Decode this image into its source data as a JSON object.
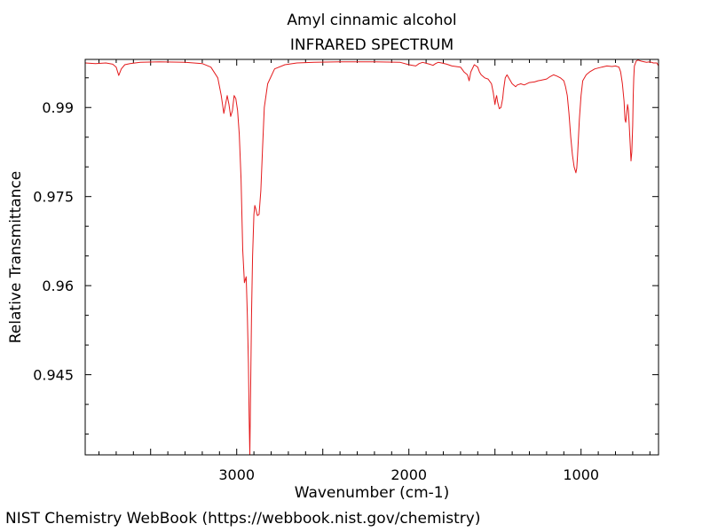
{
  "chart_data": {
    "type": "line",
    "title": "Amyl cinnamic alcohol",
    "subtitle": "INFRARED SPECTRUM",
    "xlabel": "Wavenumber (cm-1)",
    "ylabel": "Relative Transmittance",
    "xlim": [
      3880,
      550
    ],
    "ylim": [
      0.9315,
      0.9981
    ],
    "x_ticks": [
      3000,
      2000,
      1000
    ],
    "x_tick_labels": [
      "3000",
      "2000",
      "1000"
    ],
    "y_ticks": [
      0.99,
      0.975,
      0.96,
      0.945
    ],
    "y_tick_labels": [
      "0.99",
      "0.975",
      "0.96",
      "0.945"
    ],
    "grid": false,
    "series": [
      {
        "color": "#e41a1c",
        "x": [
          3880,
          3820,
          3760,
          3720,
          3700,
          3685,
          3670,
          3650,
          3620,
          3560,
          3450,
          3300,
          3200,
          3150,
          3110,
          3090,
          3075,
          3065,
          3055,
          3045,
          3035,
          3025,
          3015,
          3005,
          2995,
          2985,
          2975,
          2965,
          2955,
          2945,
          2938,
          2932,
          2928,
          2924,
          2920,
          2914,
          2908,
          2900,
          2895,
          2890,
          2880,
          2870,
          2860,
          2850,
          2840,
          2820,
          2780,
          2720,
          2650,
          2550,
          2400,
          2200,
          2050,
          2000,
          1960,
          1940,
          1920,
          1880,
          1860,
          1845,
          1830,
          1810,
          1780,
          1750,
          1700,
          1680,
          1660,
          1650,
          1640,
          1620,
          1600,
          1590,
          1580,
          1560,
          1540,
          1520,
          1510,
          1500,
          1495,
          1490,
          1485,
          1475,
          1465,
          1455,
          1450,
          1440,
          1430,
          1420,
          1400,
          1380,
          1370,
          1350,
          1330,
          1300,
          1270,
          1250,
          1230,
          1200,
          1180,
          1160,
          1140,
          1120,
          1100,
          1090,
          1080,
          1070,
          1060,
          1050,
          1040,
          1030,
          1025,
          1020,
          1010,
          1000,
          990,
          970,
          950,
          920,
          880,
          850,
          820,
          800,
          780,
          770,
          760,
          750,
          745,
          740,
          735,
          730,
          725,
          720,
          715,
          710,
          705,
          700,
          697,
          694,
          690,
          680,
          670,
          650,
          620,
          600,
          580,
          560,
          550
        ],
        "y": [
          0.9975,
          0.9974,
          0.9975,
          0.9973,
          0.9968,
          0.9954,
          0.9965,
          0.9972,
          0.9974,
          0.9976,
          0.9977,
          0.9976,
          0.9974,
          0.9968,
          0.995,
          0.992,
          0.989,
          0.9905,
          0.992,
          0.9905,
          0.9885,
          0.9895,
          0.992,
          0.9915,
          0.9895,
          0.9855,
          0.978,
          0.966,
          0.9605,
          0.9615,
          0.955,
          0.947,
          0.938,
          0.9315,
          0.94,
          0.955,
          0.965,
          0.972,
          0.9735,
          0.973,
          0.9718,
          0.972,
          0.976,
          0.983,
          0.99,
          0.994,
          0.9965,
          0.9972,
          0.9975,
          0.9976,
          0.9977,
          0.9977,
          0.9976,
          0.9972,
          0.997,
          0.9974,
          0.9976,
          0.9973,
          0.9971,
          0.9974,
          0.9976,
          0.9975,
          0.9973,
          0.997,
          0.9968,
          0.996,
          0.9955,
          0.9945,
          0.996,
          0.9972,
          0.9968,
          0.996,
          0.9955,
          0.995,
          0.9948,
          0.994,
          0.9925,
          0.9905,
          0.9915,
          0.992,
          0.991,
          0.9898,
          0.99,
          0.9915,
          0.993,
          0.995,
          0.9955,
          0.995,
          0.994,
          0.9935,
          0.9938,
          0.994,
          0.9938,
          0.9942,
          0.9943,
          0.9945,
          0.9946,
          0.9948,
          0.9952,
          0.9955,
          0.9953,
          0.995,
          0.9945,
          0.9935,
          0.992,
          0.989,
          0.985,
          0.982,
          0.98,
          0.979,
          0.9798,
          0.982,
          0.988,
          0.992,
          0.9945,
          0.9955,
          0.996,
          0.9965,
          0.9968,
          0.997,
          0.9969,
          0.997,
          0.9968,
          0.996,
          0.994,
          0.991,
          0.988,
          0.9875,
          0.989,
          0.9905,
          0.9895,
          0.987,
          0.984,
          0.981,
          0.9825,
          0.987,
          0.992,
          0.995,
          0.997,
          0.9978,
          0.998,
          0.9978,
          0.9976,
          0.9977,
          0.9975,
          0.9975,
          0.997
        ]
      }
    ]
  },
  "footer": {
    "credit": "NIST Chemistry WebBook (https://webbook.nist.gov/chemistry)"
  }
}
